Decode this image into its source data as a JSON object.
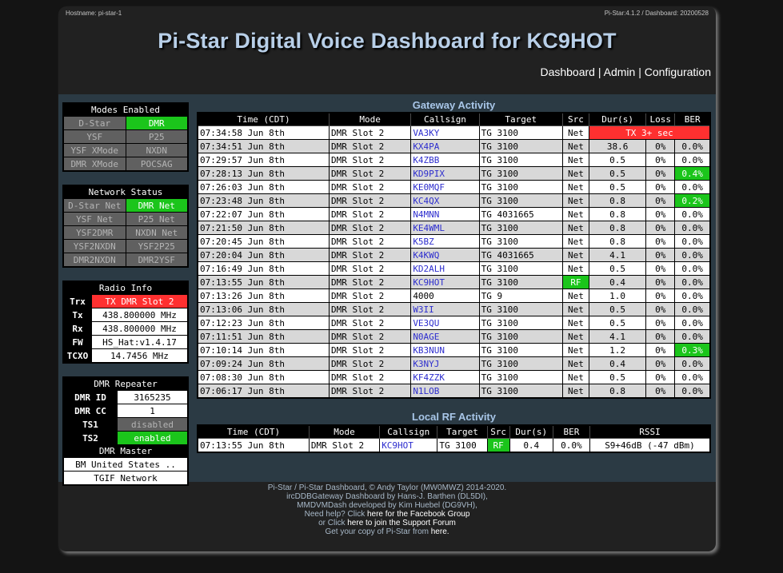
{
  "header": {
    "hostname": "Hostname: pi-star-1",
    "version": "Pi-Star:4.1.2 / Dashboard: 20200528",
    "title": "Pi-Star Digital Voice Dashboard for KC9HOT",
    "nav": [
      "Dashboard",
      "Admin",
      "Configuration"
    ],
    "nav_sep": "|"
  },
  "modes": {
    "title": "Modes Enabled",
    "rows": [
      [
        {
          "label": "D-Star",
          "on": false
        },
        {
          "label": "DMR",
          "on": true
        }
      ],
      [
        {
          "label": "YSF",
          "on": false
        },
        {
          "label": "P25",
          "on": false
        }
      ],
      [
        {
          "label": "YSF XMode",
          "on": false
        },
        {
          "label": "NXDN",
          "on": false
        }
      ],
      [
        {
          "label": "DMR XMode",
          "on": false
        },
        {
          "label": "POCSAG",
          "on": false
        }
      ]
    ]
  },
  "network": {
    "title": "Network Status",
    "rows": [
      [
        {
          "label": "D-Star Net",
          "on": false
        },
        {
          "label": "DMR Net",
          "on": true
        }
      ],
      [
        {
          "label": "YSF Net",
          "on": false
        },
        {
          "label": "P25 Net",
          "on": false
        }
      ],
      [
        {
          "label": "YSF2DMR",
          "on": false
        },
        {
          "label": "NXDN Net",
          "on": false
        }
      ],
      [
        {
          "label": "YSF2NXDN",
          "on": false
        },
        {
          "label": "YSF2P25",
          "on": false
        }
      ],
      [
        {
          "label": "DMR2NXDN",
          "on": false
        },
        {
          "label": "DMR2YSF",
          "on": false
        }
      ]
    ]
  },
  "radio": {
    "title": "Radio Info",
    "rows": [
      {
        "label": "Trx",
        "value": "TX DMR Slot 2",
        "state": "red"
      },
      {
        "label": "Tx",
        "value": "438.800000 MHz",
        "state": "wht"
      },
      {
        "label": "Rx",
        "value": "438.800000 MHz",
        "state": "wht"
      },
      {
        "label": "FW",
        "value": "HS_Hat:v1.4.17",
        "state": "wht"
      },
      {
        "label": "TCXO",
        "value": "14.7456 MHz",
        "state": "wht"
      }
    ]
  },
  "dmr": {
    "title": "DMR Repeater",
    "rows": [
      {
        "label": "DMR ID",
        "value": "3165235",
        "state": "wht"
      },
      {
        "label": "DMR CC",
        "value": "1",
        "state": "wht"
      },
      {
        "label": "TS1",
        "value": "disabled",
        "state": "dis"
      },
      {
        "label": "TS2",
        "value": "enabled",
        "state": "on"
      }
    ],
    "master_title": "DMR Master",
    "masters": [
      "BM United States ..",
      "TGIF Network"
    ]
  },
  "gateway": {
    "title": "Gateway Activity",
    "headers": [
      "Time (CDT)",
      "Mode",
      "Callsign",
      "Target",
      "Src",
      "Dur(s)",
      "Loss",
      "BER"
    ],
    "rows": [
      {
        "time": "07:34:58 Jun 8th",
        "mode": "DMR Slot 2",
        "call": "VA3KY",
        "target": "TG 3100",
        "src": "Net",
        "tx": "TX 3+ sec"
      },
      {
        "time": "07:34:51 Jun 8th",
        "mode": "DMR Slot 2",
        "call": "KX4PA",
        "target": "TG 3100",
        "src": "Net",
        "dur": "38.6",
        "loss": "0%",
        "ber": "0.0%"
      },
      {
        "time": "07:29:57 Jun 8th",
        "mode": "DMR Slot 2",
        "call": "K4ZBB",
        "target": "TG 3100",
        "src": "Net",
        "dur": "0.5",
        "loss": "0%",
        "ber": "0.0%"
      },
      {
        "time": "07:28:13 Jun 8th",
        "mode": "DMR Slot 2",
        "call": "KD9PIX",
        "target": "TG 3100",
        "src": "Net",
        "dur": "0.5",
        "loss": "0%",
        "ber": "0.4%",
        "ber_green": true
      },
      {
        "time": "07:26:03 Jun 8th",
        "mode": "DMR Slot 2",
        "call": "KE0MQF",
        "target": "TG 3100",
        "src": "Net",
        "dur": "0.5",
        "loss": "0%",
        "ber": "0.0%"
      },
      {
        "time": "07:23:48 Jun 8th",
        "mode": "DMR Slot 2",
        "call": "KC4QX",
        "target": "TG 3100",
        "src": "Net",
        "dur": "0.8",
        "loss": "0%",
        "ber": "0.2%",
        "ber_green": true
      },
      {
        "time": "07:22:07 Jun 8th",
        "mode": "DMR Slot 2",
        "call": "N4MNN",
        "target": "TG 4031665",
        "src": "Net",
        "dur": "0.8",
        "loss": "0%",
        "ber": "0.0%"
      },
      {
        "time": "07:21:50 Jun 8th",
        "mode": "DMR Slot 2",
        "call": "KE4WML",
        "target": "TG 3100",
        "src": "Net",
        "dur": "0.8",
        "loss": "0%",
        "ber": "0.0%"
      },
      {
        "time": "07:20:45 Jun 8th",
        "mode": "DMR Slot 2",
        "call": "K5BZ",
        "target": "TG 3100",
        "src": "Net",
        "dur": "0.8",
        "loss": "0%",
        "ber": "0.0%"
      },
      {
        "time": "07:20:04 Jun 8th",
        "mode": "DMR Slot 2",
        "call": "K4KWQ",
        "target": "TG 4031665",
        "src": "Net",
        "dur": "4.1",
        "loss": "0%",
        "ber": "0.0%"
      },
      {
        "time": "07:16:49 Jun 8th",
        "mode": "DMR Slot 2",
        "call": "KD2ALH",
        "target": "TG 3100",
        "src": "Net",
        "dur": "0.5",
        "loss": "0%",
        "ber": "0.0%"
      },
      {
        "time": "07:13:55 Jun 8th",
        "mode": "DMR Slot 2",
        "call": "KC9HOT",
        "target": "TG 3100",
        "src": "RF",
        "src_green": true,
        "dur": "0.4",
        "loss": "0%",
        "ber": "0.0%"
      },
      {
        "time": "07:13:26 Jun 8th",
        "mode": "DMR Slot 2",
        "call": "4000",
        "call_plain": true,
        "target": "TG 9",
        "src": "Net",
        "dur": "1.0",
        "loss": "0%",
        "ber": "0.0%"
      },
      {
        "time": "07:13:06 Jun 8th",
        "mode": "DMR Slot 2",
        "call": "W3II",
        "target": "TG 3100",
        "src": "Net",
        "dur": "0.5",
        "loss": "0%",
        "ber": "0.0%"
      },
      {
        "time": "07:12:23 Jun 8th",
        "mode": "DMR Slot 2",
        "call": "VE3QU",
        "target": "TG 3100",
        "src": "Net",
        "dur": "0.5",
        "loss": "0%",
        "ber": "0.0%"
      },
      {
        "time": "07:11:51 Jun 8th",
        "mode": "DMR Slot 2",
        "call": "N0AGE",
        "target": "TG 3100",
        "src": "Net",
        "dur": "4.1",
        "loss": "0%",
        "ber": "0.0%"
      },
      {
        "time": "07:10:14 Jun 8th",
        "mode": "DMR Slot 2",
        "call": "KB3NUN",
        "target": "TG 3100",
        "src": "Net",
        "dur": "1.2",
        "loss": "0%",
        "ber": "0.3%",
        "ber_green": true
      },
      {
        "time": "07:09:24 Jun 8th",
        "mode": "DMR Slot 2",
        "call": "K3NYJ",
        "target": "TG 3100",
        "src": "Net",
        "dur": "0.4",
        "loss": "0%",
        "ber": "0.0%"
      },
      {
        "time": "07:08:30 Jun 8th",
        "mode": "DMR Slot 2",
        "call": "KF4ZZK",
        "target": "TG 3100",
        "src": "Net",
        "dur": "0.5",
        "loss": "0%",
        "ber": "0.0%"
      },
      {
        "time": "07:06:17 Jun 8th",
        "mode": "DMR Slot 2",
        "call": "N1LOB",
        "target": "TG 3100",
        "src": "Net",
        "dur": "0.8",
        "loss": "0%",
        "ber": "0.0%"
      }
    ]
  },
  "local": {
    "title": "Local RF Activity",
    "headers": [
      "Time (CDT)",
      "Mode",
      "Callsign",
      "Target",
      "Src",
      "Dur(s)",
      "BER",
      "RSSI"
    ],
    "rows": [
      {
        "time": "07:13:55 Jun 8th",
        "mode": "DMR Slot 2",
        "call": "KC9HOT",
        "target": "TG 3100",
        "src": "RF",
        "dur": "0.4",
        "ber": "0.0%",
        "rssi": "S9+46dB (-47 dBm)"
      }
    ]
  },
  "footer": {
    "line1": "Pi-Star / Pi-Star Dashboard, © Andy Taylor (MW0MWZ) 2014-2020.",
    "line2": "ircDDBGateway Dashboard by Hans-J. Barthen (DL5DI),",
    "line3": "MMDVMDash developed by Kim Huebel (DG9VH),",
    "line4a": "Need help? Click ",
    "line4b": "here for the Facebook Group",
    "line5a": "or Click ",
    "line5b": "here to join the Support Forum",
    "line6a": "Get your copy of Pi-Star from ",
    "line6b": "here."
  }
}
